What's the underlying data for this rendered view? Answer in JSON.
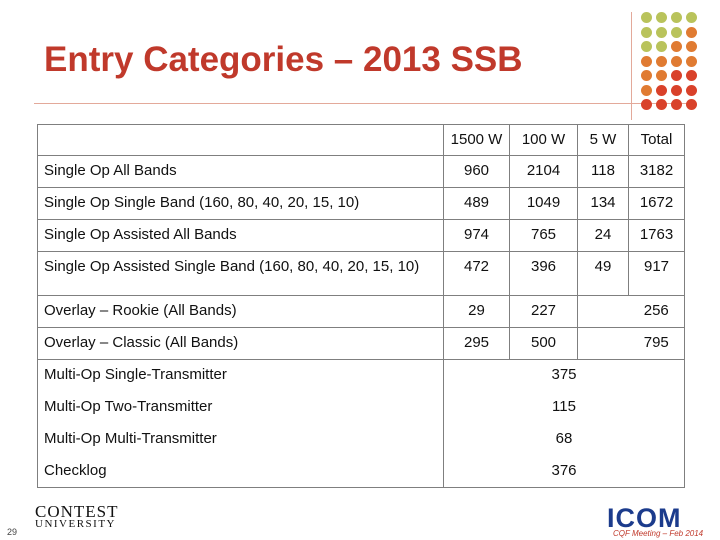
{
  "slide": {
    "title": "Entry Categories – 2013 SSB",
    "page_number": "29",
    "colors": {
      "title": "#c0392b",
      "dot_green": "#b9c35b",
      "dot_orange": "#e07b32",
      "dot_red": "#d9412a"
    }
  },
  "table": {
    "headers": [
      "",
      "1500 W",
      "100 W",
      "5 W",
      "Total"
    ],
    "rows": [
      {
        "category": "Single Op All Bands",
        "w1500": "960",
        "w100": "2104",
        "w5": "118",
        "total": "3182"
      },
      {
        "category": "Single Op Single Band (160, 80, 40, 20, 15, 10)",
        "w1500": "489",
        "w100": "1049",
        "w5": "134",
        "total": "1672"
      },
      {
        "category": "Single Op Assisted All Bands",
        "w1500": "974",
        "w100": "765",
        "w5": "24",
        "total": "1763"
      },
      {
        "category": "Single Op Assisted Single Band (160, 80, 40, 20, 15, 10)",
        "w1500": "472",
        "w100": "396",
        "w5": "49",
        "total": "917"
      },
      {
        "category": "Overlay – Rookie (All Bands)",
        "w1500": "29",
        "w100": "227",
        "w5": "",
        "total": "256"
      },
      {
        "category": "Overlay – Classic (All Bands)",
        "w1500": "295",
        "w100": "500",
        "w5": "",
        "total": "795"
      }
    ],
    "merged_rows": [
      {
        "category": "Multi-Op Single-Transmitter",
        "value": "375"
      },
      {
        "category": "Multi-Op Two-Transmitter",
        "value": "115"
      },
      {
        "category": "Multi-Op Multi-Transmitter",
        "value": "68"
      },
      {
        "category": "Checklog",
        "value": "376"
      }
    ]
  },
  "footer": {
    "logo_line1": "CONTEST",
    "logo_line2": "UNIVERSITY",
    "icom": "ICOM",
    "meeting": "CQF Meeting – Feb 2014"
  }
}
